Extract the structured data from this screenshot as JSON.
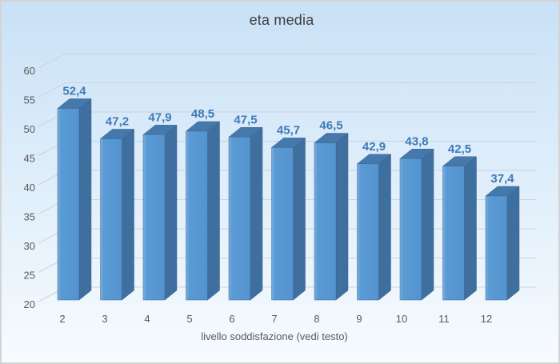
{
  "chart_data": {
    "type": "bar",
    "effect": "3d-column",
    "title": "eta media",
    "xlabel": "livello soddisfazione (vedi testo)",
    "ylabel": "",
    "categories": [
      "2",
      "3",
      "4",
      "5",
      "6",
      "7",
      "8",
      "9",
      "10",
      "11",
      "12"
    ],
    "values": [
      52.4,
      47.2,
      47.9,
      48.5,
      47.5,
      45.7,
      46.5,
      42.9,
      43.8,
      42.5,
      37.4
    ],
    "value_labels": [
      "52,4",
      "47,2",
      "47,9",
      "48,5",
      "47,5",
      "45,7",
      "46,5",
      "42,9",
      "43,8",
      "42,5",
      "37,4"
    ],
    "yticks": [
      20,
      25,
      30,
      35,
      40,
      45,
      50,
      55,
      60
    ],
    "ylim": [
      20,
      60
    ],
    "grid": true,
    "legend": false,
    "colors": {
      "bar_front": "#5b9bd5",
      "bar_front_light": "#7fb0de",
      "bar_front_dark": "#5493cd",
      "bar_side": "#3f6f9e",
      "bar_top": "#4579ab",
      "bar_edge": "#3a6590",
      "data_label": "#3e7ab8",
      "axis_text": "#595959",
      "title_text": "#404040",
      "gridline": "#c9d4de",
      "bg_top": "#c9e1f6",
      "bg_mid": "#ddedfa",
      "bg_bottom": "#f7fbfe",
      "frame_border": "#d4d4d4"
    }
  }
}
